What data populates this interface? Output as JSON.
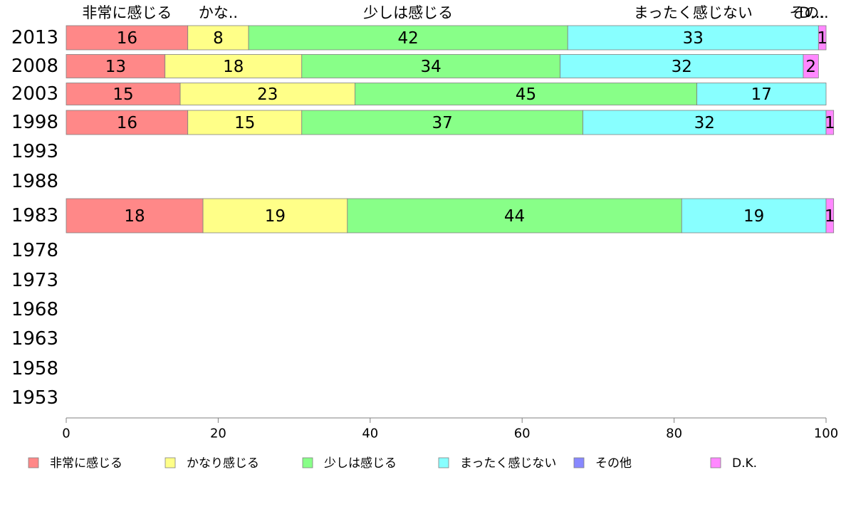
{
  "chart_data": {
    "type": "bar",
    "orientation": "horizontal",
    "stacked": true,
    "categories": [
      "2013",
      "2008",
      "2003",
      "1998",
      "1993",
      "1988",
      "1983",
      "1978",
      "1973",
      "1968",
      "1963",
      "1958",
      "1953"
    ],
    "top_labels": [
      "非常に感じる",
      "かな..",
      "少しは感じる",
      "まったく感じない",
      "その..",
      "D..."
    ],
    "series": [
      {
        "name": "非常に感じる",
        "color": "#ff8888",
        "values": [
          16,
          13,
          15,
          16,
          null,
          null,
          18,
          null,
          null,
          null,
          null,
          null,
          null
        ]
      },
      {
        "name": "かなり感じる",
        "color": "#ffff88",
        "values": [
          8,
          18,
          23,
          15,
          null,
          null,
          19,
          null,
          null,
          null,
          null,
          null,
          null
        ]
      },
      {
        "name": "少しは感じる",
        "color": "#88ff88",
        "values": [
          42,
          34,
          45,
          37,
          null,
          null,
          44,
          null,
          null,
          null,
          null,
          null,
          null
        ]
      },
      {
        "name": "まったく感じない",
        "color": "#88ffff",
        "values": [
          33,
          32,
          17,
          32,
          null,
          null,
          19,
          null,
          null,
          null,
          null,
          null,
          null
        ]
      },
      {
        "name": "その他",
        "color": "#8888ff",
        "values": [
          0,
          0,
          0,
          0,
          null,
          null,
          0,
          null,
          null,
          null,
          null,
          null,
          null
        ]
      },
      {
        "name": "D.K.",
        "color": "#ff88ff",
        "values": [
          1,
          2,
          0,
          1,
          null,
          null,
          1,
          null,
          null,
          null,
          null,
          null,
          null
        ]
      }
    ],
    "xlim": [
      0,
      100
    ],
    "xticks": [
      0,
      20,
      40,
      60,
      80,
      100
    ],
    "legend_position": "bottom"
  }
}
